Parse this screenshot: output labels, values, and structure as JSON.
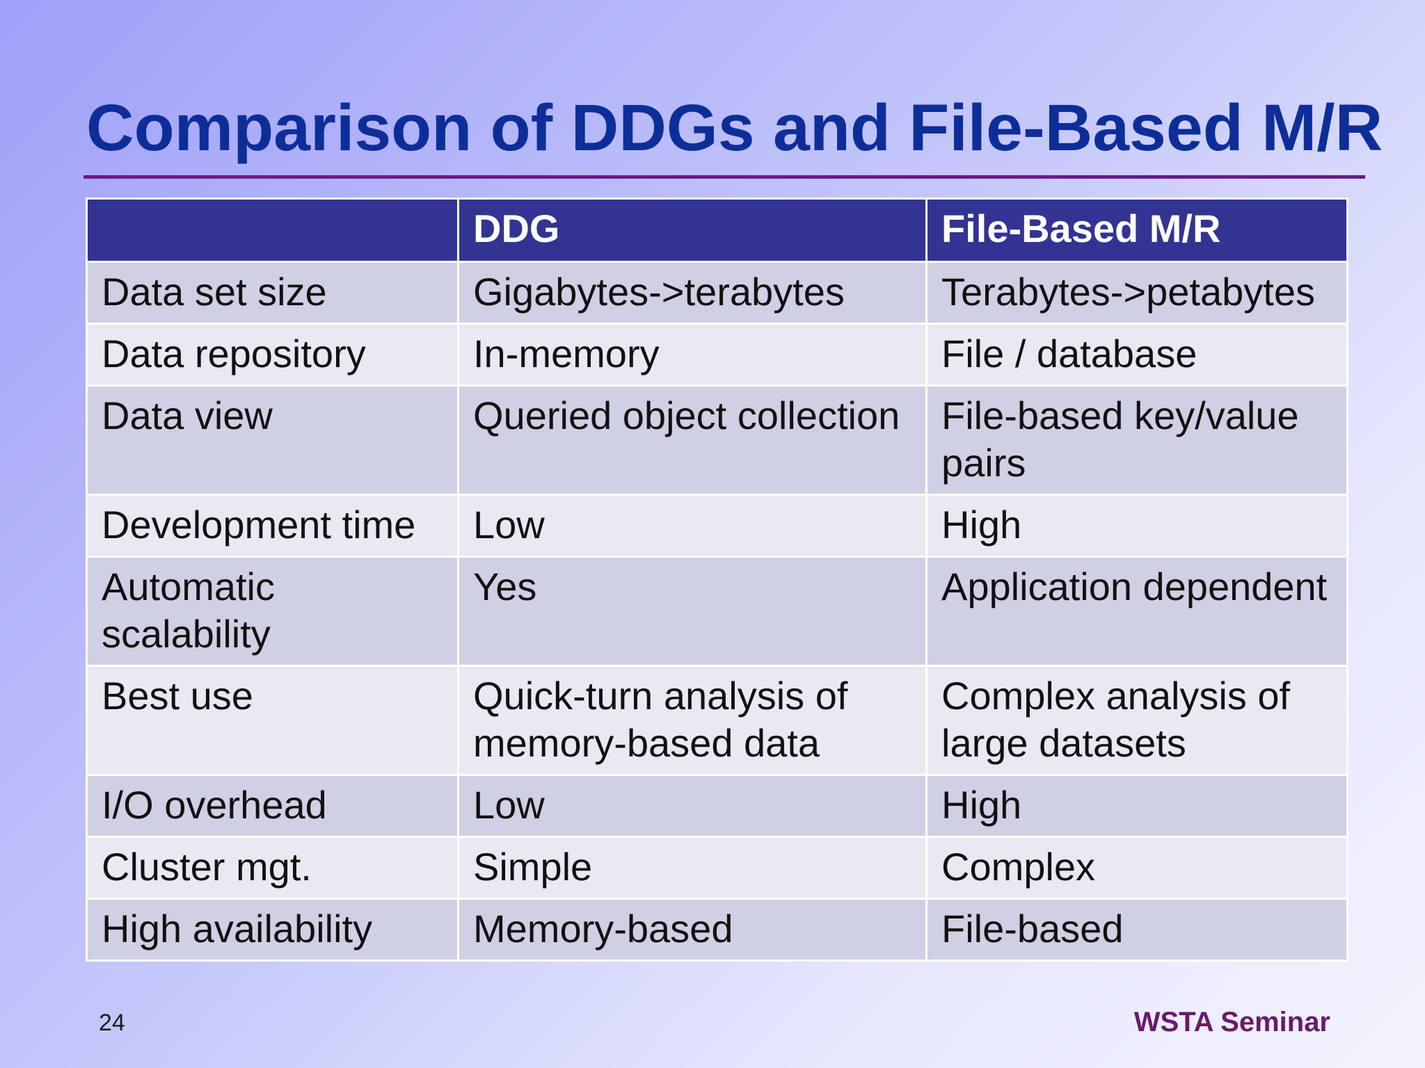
{
  "slide": {
    "title": "Comparison of DDGs and File-Based M/R",
    "page_number": "24",
    "footer": "WSTA Seminar"
  },
  "table": {
    "headers": [
      "",
      "DDG",
      "File-Based M/R"
    ],
    "rows": [
      [
        "Data set size",
        "Gigabytes->terabytes",
        "Terabytes->petabytes"
      ],
      [
        "Data repository",
        "In-memory",
        "File / database"
      ],
      [
        "Data view",
        "Queried object collection",
        "File-based key/value pairs"
      ],
      [
        "Development time",
        "Low",
        "High"
      ],
      [
        "Automatic scalability",
        "Yes",
        "Application dependent"
      ],
      [
        "Best use",
        "Quick-turn analysis of memory-based data",
        "Complex analysis of large datasets"
      ],
      [
        "I/O overhead",
        "Low",
        "High"
      ],
      [
        "Cluster mgt.",
        "Simple",
        "Complex"
      ],
      [
        "High availability",
        "Memory-based",
        "File-based"
      ]
    ]
  },
  "colors": {
    "title": "#0d2e99",
    "rule": "#6a1a86",
    "header_bg": "#333393",
    "row_odd": "#d0d0e4",
    "row_even": "#e9e9f3",
    "footer": "#6a1a6a"
  }
}
